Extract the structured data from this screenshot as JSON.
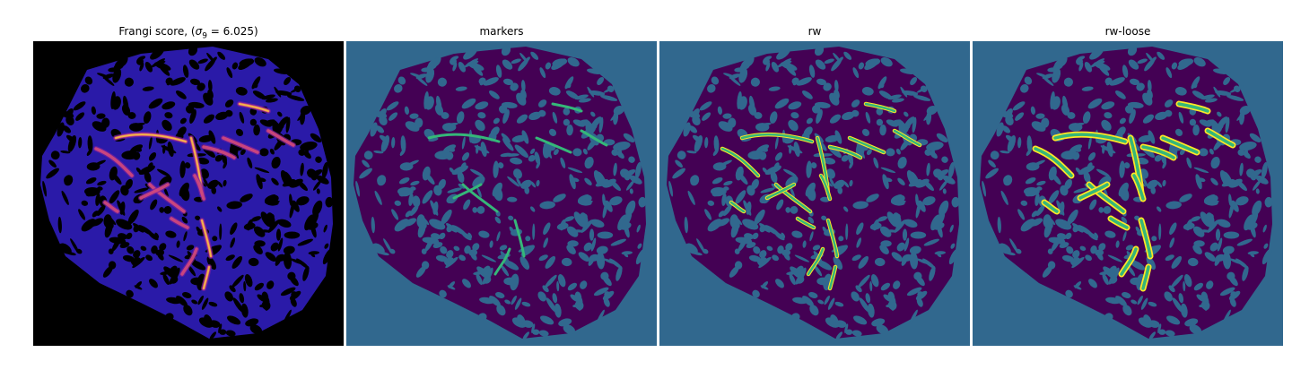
{
  "figure": {
    "panels": [
      {
        "title_prefix": "Frangi score, (",
        "sigma_symbol": "σ",
        "sigma_sub": "9",
        "title_suffix": " = 6.025)",
        "kind": "frangi"
      },
      {
        "title": "markers",
        "kind": "markers"
      },
      {
        "title": "rw",
        "kind": "rw"
      },
      {
        "title": "rw-loose",
        "kind": "rwloose"
      }
    ],
    "colors": {
      "background_black": "#000000",
      "teal_background": "#31688e",
      "dark_purple": "#440154",
      "green": "#35b779",
      "yellow": "#fde725",
      "frangi_base": "#2a1aa8",
      "frangi_hot": "#f2b44a"
    }
  }
}
